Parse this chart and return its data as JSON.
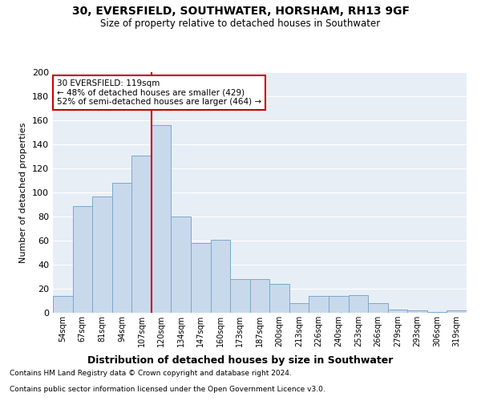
{
  "title": "30, EVERSFIELD, SOUTHWATER, HORSHAM, RH13 9GF",
  "subtitle": "Size of property relative to detached houses in Southwater",
  "xlabel": "Distribution of detached houses by size in Southwater",
  "ylabel": "Number of detached properties",
  "categories": [
    "54sqm",
    "67sqm",
    "81sqm",
    "94sqm",
    "107sqm",
    "120sqm",
    "134sqm",
    "147sqm",
    "160sqm",
    "173sqm",
    "187sqm",
    "200sqm",
    "213sqm",
    "226sqm",
    "240sqm",
    "253sqm",
    "266sqm",
    "279sqm",
    "293sqm",
    "306sqm",
    "319sqm"
  ],
  "values": [
    14,
    89,
    97,
    108,
    131,
    156,
    80,
    58,
    61,
    28,
    28,
    24,
    8,
    14,
    14,
    15,
    8,
    3,
    2,
    1,
    2
  ],
  "bar_color": "#c9d9ec",
  "bar_edge_color": "#7aa8cc",
  "vline_x": 4.5,
  "vline_color": "#cc0000",
  "annotation_text": "30 EVERSFIELD: 119sqm\n← 48% of detached houses are smaller (429)\n52% of semi-detached houses are larger (464) →",
  "annotation_box_color": "#ffffff",
  "annotation_box_edge_color": "#cc0000",
  "ylim": [
    0,
    200
  ],
  "yticks": [
    0,
    20,
    40,
    60,
    80,
    100,
    120,
    140,
    160,
    180,
    200
  ],
  "bg_color": "#e8eef5",
  "footer_line1": "Contains HM Land Registry data © Crown copyright and database right 2024.",
  "footer_line2": "Contains public sector information licensed under the Open Government Licence v3.0."
}
